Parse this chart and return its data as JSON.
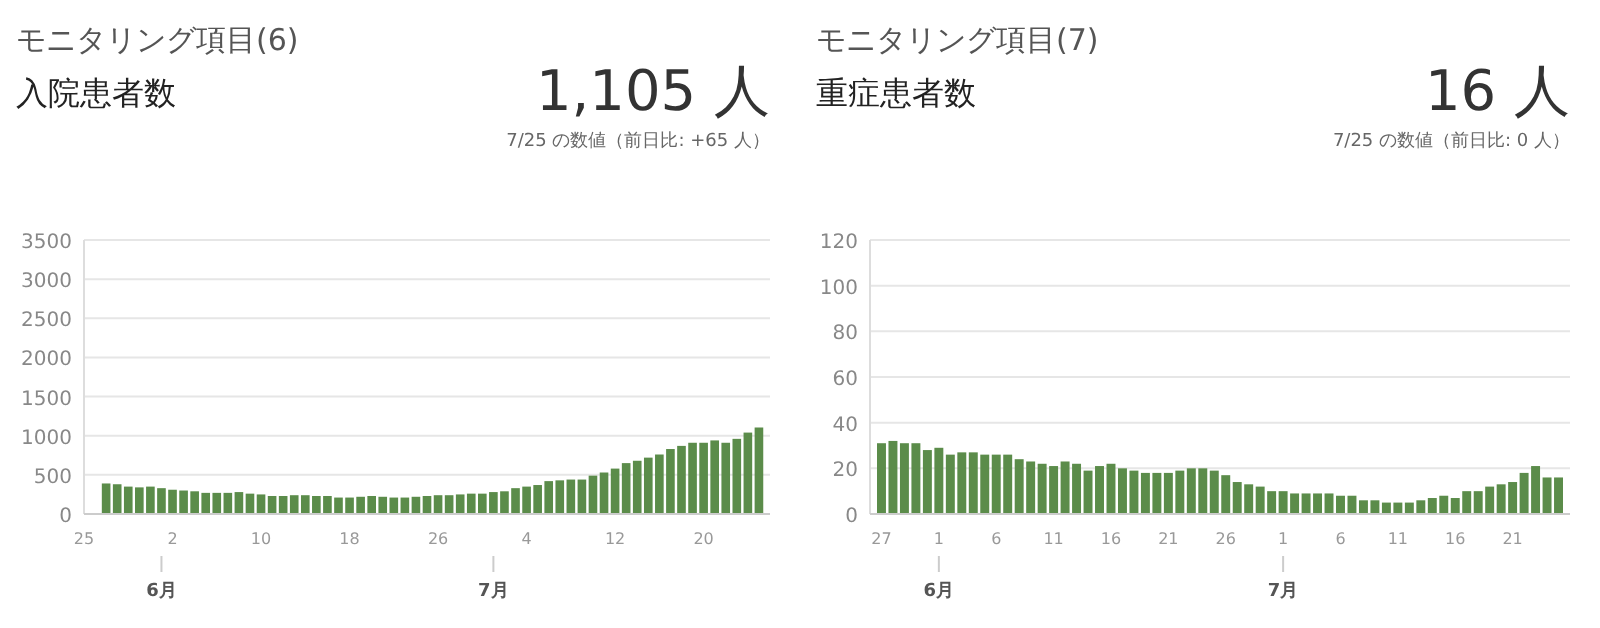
{
  "chart_data": [
    {
      "type": "bar",
      "title": "モニタリング項目(6)",
      "subtitle": "入院患者数",
      "annotations": [
        "1,105 人",
        "7/25 の数値（前日比: +65 人）",
        {
          "text": "6月",
          "x": "--06-01"
        },
        {
          "text": "7月",
          "x": "--07-01"
        }
      ],
      "x": [
        "--05-27",
        "--05-28",
        "--05-29",
        "--05-30",
        "--05-31",
        "--06-01",
        "--06-02",
        "--06-03",
        "--06-04",
        "--06-05",
        "--06-06",
        "--06-07",
        "--06-08",
        "--06-09",
        "--06-10",
        "--06-11",
        "--06-12",
        "--06-13",
        "--06-14",
        "--06-15",
        "--06-16",
        "--06-17",
        "--06-18",
        "--06-19",
        "--06-20",
        "--06-21",
        "--06-22",
        "--06-23",
        "--06-24",
        "--06-25",
        "--06-26",
        "--06-27",
        "--06-28",
        "--06-29",
        "--06-30",
        "--07-01",
        "--07-02",
        "--07-03",
        "--07-04",
        "--07-05",
        "--07-06",
        "--07-07",
        "--07-08",
        "--07-09",
        "--07-10",
        "--07-11",
        "--07-12",
        "--07-13",
        "--07-14",
        "--07-15",
        "--07-16",
        "--07-17",
        "--07-18",
        "--07-19",
        "--07-20",
        "--07-21",
        "--07-22",
        "--07-23",
        "--07-24",
        "--07-25"
      ],
      "values": [
        390,
        380,
        350,
        340,
        350,
        330,
        310,
        300,
        290,
        270,
        270,
        270,
        280,
        260,
        250,
        230,
        230,
        240,
        240,
        230,
        230,
        210,
        210,
        220,
        230,
        220,
        210,
        210,
        220,
        230,
        240,
        240,
        250,
        260,
        260,
        280,
        290,
        330,
        350,
        370,
        420,
        430,
        440,
        440,
        490,
        530,
        580,
        650,
        680,
        720,
        760,
        830,
        870,
        910,
        910,
        940,
        910,
        960,
        1040,
        1105
      ],
      "color": "#5b8c4a",
      "xlim": [
        "--05-25",
        "--07-26"
      ],
      "ylim": [
        0,
        3500
      ],
      "yticks": [
        0,
        500,
        1000,
        1500,
        2000,
        2500,
        3000,
        3500
      ],
      "xticks": [
        {
          "value": "--05-25",
          "label": "25"
        },
        {
          "value": "--06-02",
          "label": "2"
        },
        {
          "value": "--06-10",
          "label": "10"
        },
        {
          "value": "--06-18",
          "label": "18"
        },
        {
          "value": "--06-26",
          "label": "26"
        },
        {
          "value": "--07-04",
          "label": "4"
        },
        {
          "value": "--07-12",
          "label": "12"
        },
        {
          "value": "--07-20",
          "label": "20"
        }
      ],
      "grid": "y"
    },
    {
      "type": "bar",
      "title": "モニタリング項目(7)",
      "subtitle": "重症患者数",
      "annotations": [
        "16 人",
        "7/25 の数値（前日比: 0 人）",
        {
          "text": "6月",
          "x": "--06-01"
        },
        {
          "text": "7月",
          "x": "--07-01"
        }
      ],
      "x": [
        "--05-27",
        "--05-28",
        "--05-29",
        "--05-30",
        "--05-31",
        "--06-01",
        "--06-02",
        "--06-03",
        "--06-04",
        "--06-05",
        "--06-06",
        "--06-07",
        "--06-08",
        "--06-09",
        "--06-10",
        "--06-11",
        "--06-12",
        "--06-13",
        "--06-14",
        "--06-15",
        "--06-16",
        "--06-17",
        "--06-18",
        "--06-19",
        "--06-20",
        "--06-21",
        "--06-22",
        "--06-23",
        "--06-24",
        "--06-25",
        "--06-26",
        "--06-27",
        "--06-28",
        "--06-29",
        "--06-30",
        "--07-01",
        "--07-02",
        "--07-03",
        "--07-04",
        "--07-05",
        "--07-06",
        "--07-07",
        "--07-08",
        "--07-09",
        "--07-10",
        "--07-11",
        "--07-12",
        "--07-13",
        "--07-14",
        "--07-15",
        "--07-16",
        "--07-17",
        "--07-18",
        "--07-19",
        "--07-20",
        "--07-21",
        "--07-22",
        "--07-23",
        "--07-24",
        "--07-25"
      ],
      "values": [
        31,
        32,
        31,
        31,
        28,
        29,
        26,
        27,
        27,
        26,
        26,
        26,
        24,
        23,
        22,
        21,
        23,
        22,
        19,
        21,
        22,
        20,
        19,
        18,
        18,
        18,
        19,
        20,
        20,
        19,
        17,
        14,
        13,
        12,
        10,
        10,
        9,
        9,
        9,
        9,
        8,
        8,
        6,
        6,
        5,
        5,
        5,
        6,
        7,
        8,
        7,
        10,
        10,
        12,
        13,
        14,
        18,
        21,
        16,
        16
      ],
      "color": "#5b8c4a",
      "xlim": [
        "--05-26",
        "--07-26"
      ],
      "ylim": [
        0,
        120
      ],
      "yticks": [
        0,
        20,
        40,
        60,
        80,
        100,
        120
      ],
      "xticks": [
        {
          "value": "--05-27",
          "label": "27"
        },
        {
          "value": "--06-01",
          "label": "1"
        },
        {
          "value": "--06-06",
          "label": "6"
        },
        {
          "value": "--06-11",
          "label": "11"
        },
        {
          "value": "--06-16",
          "label": "16"
        },
        {
          "value": "--06-21",
          "label": "21"
        },
        {
          "value": "--06-26",
          "label": "26"
        },
        {
          "value": "--07-01",
          "label": "1"
        },
        {
          "value": "--07-06",
          "label": "6"
        },
        {
          "value": "--07-11",
          "label": "11"
        },
        {
          "value": "--07-16",
          "label": "16"
        },
        {
          "value": "--07-21",
          "label": "21"
        }
      ],
      "grid": "y"
    }
  ]
}
